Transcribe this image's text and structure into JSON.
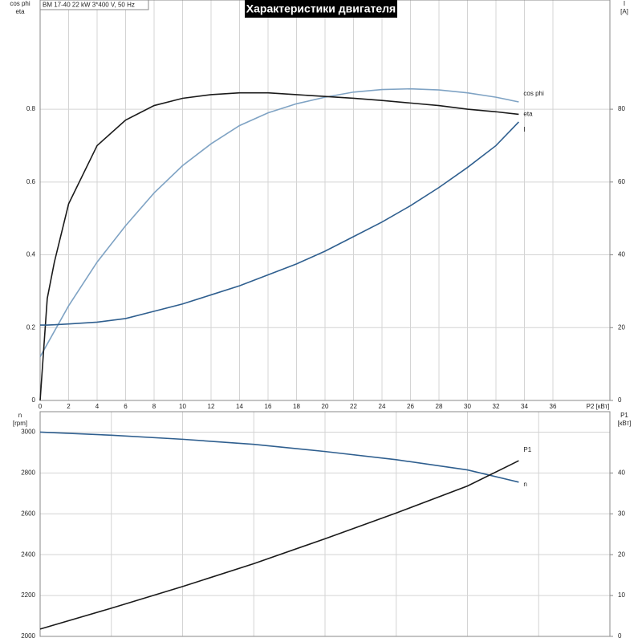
{
  "chart_data": [
    {
      "type": "line",
      "header": "BM 17-40   22 kW   3*400 V, 50 Hz",
      "title": "Характеристики двигателя",
      "y_label": [
        "cos phi",
        "eta"
      ],
      "y2_label": [
        "I",
        "[A]"
      ],
      "x_label": "P2 [кВт]",
      "x": [
        0,
        0.5,
        1,
        2,
        4,
        6,
        8,
        10,
        12,
        14,
        16,
        18,
        20,
        22,
        24,
        26,
        28,
        30,
        32,
        33.6
      ],
      "series": [
        {
          "name": "cos phi",
          "color": "#7fa3c4",
          "values": [
            0.12,
            0.155,
            0.19,
            0.26,
            0.38,
            0.48,
            0.57,
            0.645,
            0.705,
            0.755,
            0.79,
            0.815,
            0.833,
            0.847,
            0.854,
            0.856,
            0.853,
            0.845,
            0.833,
            0.82
          ]
        },
        {
          "name": "eta",
          "color": "#1a1a1a",
          "values": [
            0,
            0.28,
            0.38,
            0.54,
            0.7,
            0.77,
            0.81,
            0.83,
            0.84,
            0.845,
            0.845,
            0.84,
            0.835,
            0.83,
            0.824,
            0.817,
            0.81,
            0.8,
            0.793,
            0.786
          ]
        },
        {
          "name": "I",
          "color": "#2f5f8f",
          "axis": "y2",
          "values": [
            20.7,
            20.7,
            20.8,
            21,
            21.5,
            22.5,
            24.5,
            26.5,
            29,
            31.5,
            34.5,
            37.5,
            41,
            45,
            49,
            53.5,
            58.5,
            64,
            70,
            76.5
          ]
        }
      ],
      "xlim": [
        0,
        40
      ],
      "xticks": [
        0,
        2,
        4,
        6,
        8,
        10,
        12,
        14,
        16,
        18,
        20,
        22,
        24,
        26,
        28,
        30,
        32,
        34,
        36
      ],
      "ylim": [
        0,
        1.1
      ],
      "yticks": [
        0,
        0.2,
        0.4,
        0.6,
        0.8
      ],
      "y2lim": [
        0,
        110
      ],
      "y2ticks": [
        0,
        20,
        40,
        60,
        80
      ],
      "grid": true
    },
    {
      "type": "line",
      "y_label": [
        "n",
        "[rpm]"
      ],
      "y2_label": [
        "P1",
        "[кВт]"
      ],
      "x": [
        0,
        5,
        10,
        15,
        20,
        25,
        30,
        33.6
      ],
      "series": [
        {
          "name": "n",
          "color": "#2f5f8f",
          "values": [
            3000,
            2985,
            2965,
            2940,
            2905,
            2865,
            2815,
            2755
          ]
        },
        {
          "name": "P1",
          "color": "#1a1a1a",
          "axis": "y2",
          "values": [
            1.8,
            6.9,
            12.2,
            17.8,
            23.9,
            30.2,
            36.8,
            43
          ]
        }
      ],
      "xlim": [
        0,
        40
      ],
      "xgrid": [
        0,
        5,
        10,
        15,
        20,
        25,
        30,
        35,
        40
      ],
      "ylim": [
        2000,
        3100
      ],
      "yticks": [
        2000,
        2200,
        2400,
        2600,
        2800,
        3000
      ],
      "y2lim": [
        0,
        55
      ],
      "y2ticks": [
        0,
        10,
        20,
        30,
        40
      ],
      "grid": true
    }
  ]
}
